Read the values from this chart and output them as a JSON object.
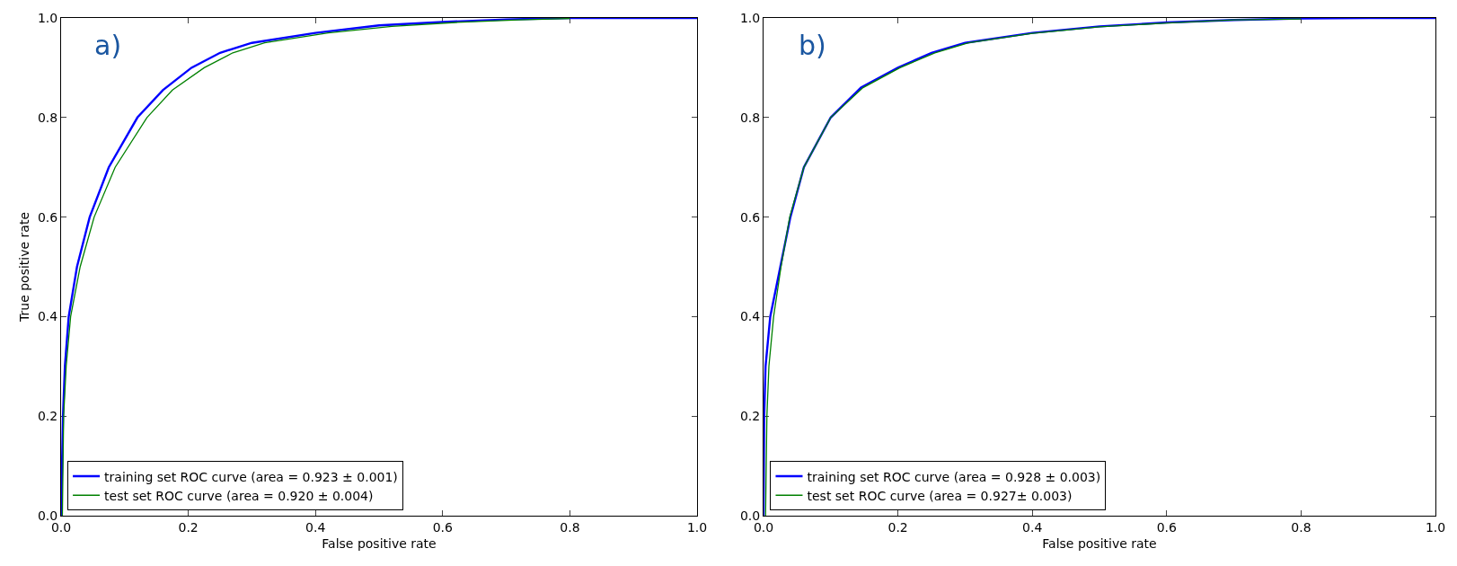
{
  "chart_data": [
    {
      "type": "line",
      "xlabel": "False positive rate",
      "ylabel": "True positive rate",
      "annotations": [
        "a)"
      ],
      "grid": false,
      "marker": "none",
      "xlim": [
        0,
        1
      ],
      "ylim": [
        0,
        1
      ],
      "xticks": [
        {
          "value": 0,
          "label": "0.0"
        },
        {
          "value": 0.2,
          "label": "0.2"
        },
        {
          "value": 0.4,
          "label": "0.4"
        },
        {
          "value": 0.6,
          "label": "0.6"
        },
        {
          "value": 0.8,
          "label": "0.8"
        },
        {
          "value": 1,
          "label": "1.0"
        }
      ],
      "yticks": [
        {
          "value": 0,
          "label": "0.0"
        },
        {
          "value": 0.2,
          "label": "0.2"
        },
        {
          "value": 0.4,
          "label": "0.4"
        },
        {
          "value": 0.6,
          "label": "0.6"
        },
        {
          "value": 0.8,
          "label": "0.8"
        },
        {
          "value": 1,
          "label": "1.0"
        }
      ],
      "legend": "bottom left",
      "line_style": "solid",
      "series": [
        {
          "name": "training set ROC curve (area = 0.923 ± 0.001)",
          "color": "#0000ff",
          "x": [
            0,
            0.003,
            0.006,
            0.012,
            0.025,
            0.045,
            0.075,
            0.12,
            0.16,
            0.205,
            0.25,
            0.3,
            0.4,
            0.5,
            0.6,
            0.7,
            0.8,
            0.9,
            1
          ],
          "values": [
            0,
            0.2,
            0.3,
            0.4,
            0.5,
            0.6,
            0.7,
            0.8,
            0.855,
            0.9,
            0.93,
            0.95,
            0.97,
            0.985,
            0.992,
            0.997,
            1,
            1,
            1
          ]
        },
        {
          "name": "test set ROC curve (area = 0.920 ± 0.004)",
          "color": "#008000",
          "x": [
            0.002,
            0.004,
            0.008,
            0.015,
            0.03,
            0.052,
            0.085,
            0.135,
            0.175,
            0.225,
            0.27,
            0.32,
            0.42,
            0.52,
            0.62,
            0.72,
            0.8
          ],
          "values": [
            0,
            0.2,
            0.3,
            0.4,
            0.5,
            0.6,
            0.7,
            0.8,
            0.855,
            0.9,
            0.93,
            0.95,
            0.97,
            0.983,
            0.991,
            0.996,
            0.999
          ]
        }
      ]
    },
    {
      "type": "line",
      "xlabel": "False positive rate",
      "annotations": [
        "b)"
      ],
      "grid": false,
      "marker": "none",
      "xlim": [
        0,
        1
      ],
      "ylim": [
        0,
        1
      ],
      "xticks": [
        {
          "value": 0,
          "label": "0.0"
        },
        {
          "value": 0.2,
          "label": "0.2"
        },
        {
          "value": 0.4,
          "label": "0.4"
        },
        {
          "value": 0.6,
          "label": "0.6"
        },
        {
          "value": 0.8,
          "label": "0.8"
        },
        {
          "value": 1,
          "label": "1.0"
        }
      ],
      "yticks": [
        {
          "value": 0,
          "label": "0.0"
        },
        {
          "value": 0.2,
          "label": "0.2"
        },
        {
          "value": 0.4,
          "label": "0.4"
        },
        {
          "value": 0.6,
          "label": "0.6"
        },
        {
          "value": 0.8,
          "label": "0.8"
        },
        {
          "value": 1,
          "label": "1.0"
        }
      ],
      "legend": "bottom left",
      "line_style": "solid",
      "series": [
        {
          "name": "training set ROC curve (area = 0.928 ± 0.003)",
          "color": "#0000ff",
          "x": [
            0,
            0.001,
            0.003,
            0.01,
            0.025,
            0.04,
            0.06,
            0.1,
            0.145,
            0.2,
            0.25,
            0.3,
            0.4,
            0.5,
            0.6,
            0.7,
            0.8,
            0.9,
            1
          ],
          "values": [
            0,
            0.2,
            0.3,
            0.4,
            0.5,
            0.6,
            0.7,
            0.8,
            0.86,
            0.9,
            0.93,
            0.95,
            0.97,
            0.983,
            0.991,
            0.996,
            0.999,
            1,
            1
          ]
        },
        {
          "name": "test set ROC curve (area = 0.927± 0.003)",
          "color": "#008000",
          "x": [
            0.003,
            0.005,
            0.008,
            0.015,
            0.026,
            0.039,
            0.06,
            0.1,
            0.148,
            0.203,
            0.255,
            0.305,
            0.4,
            0.5,
            0.6,
            0.7,
            0.8
          ],
          "values": [
            0,
            0.2,
            0.3,
            0.4,
            0.5,
            0.6,
            0.7,
            0.8,
            0.86,
            0.9,
            0.93,
            0.95,
            0.969,
            0.982,
            0.99,
            0.996,
            0.998
          ]
        }
      ]
    }
  ]
}
